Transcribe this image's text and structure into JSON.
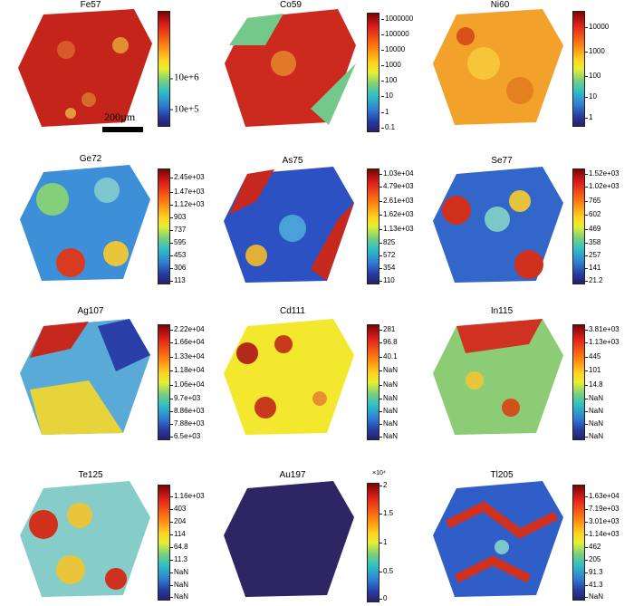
{
  "panels": [
    {
      "title": "Fe57",
      "ticks": [
        "10e+6",
        "10e+5"
      ],
      "scale_label": "200µm"
    },
    {
      "title": "Co59",
      "ticks": [
        "1000000",
        "100000",
        "10000",
        "1000",
        "100",
        "10",
        "1",
        "0.1"
      ]
    },
    {
      "title": "Ni60",
      "ticks": [
        "10000",
        "1000",
        "100",
        "10",
        "1"
      ]
    },
    {
      "title": "Ge72",
      "ticks": [
        "2.45e+03",
        "1.47e+03",
        "1.12e+03",
        "903",
        "737",
        "595",
        "453",
        "306",
        "113"
      ]
    },
    {
      "title": "As75",
      "ticks": [
        "1.03e+04",
        "4.79e+03",
        "2.61e+03",
        "1.62e+03",
        "1.13e+03",
        "825",
        "572",
        "354",
        "110"
      ]
    },
    {
      "title": "Se77",
      "ticks": [
        "1.52e+03",
        "1.02e+03",
        "765",
        "602",
        "469",
        "358",
        "257",
        "141",
        "21.2"
      ]
    },
    {
      "title": "Ag107",
      "ticks": [
        "2.22e+04",
        "1.66e+04",
        "1.33e+04",
        "1.18e+04",
        "1.06e+04",
        "9.7e+03",
        "8.86e+03",
        "7.88e+03",
        "6.5e+03"
      ]
    },
    {
      "title": "Cd111",
      "ticks": [
        "281",
        "96.8",
        "40.1",
        "NaN",
        "NaN",
        "NaN",
        "NaN",
        "NaN",
        "NaN"
      ]
    },
    {
      "title": "In115",
      "ticks": [
        "3.81e+03",
        "1.13e+03",
        "445",
        "101",
        "14.8",
        "NaN",
        "NaN",
        "NaN",
        "NaN"
      ]
    },
    {
      "title": "Te125",
      "ticks": [
        "1.16e+03",
        "403",
        "204",
        "114",
        "64.8",
        "11.3",
        "NaN",
        "NaN",
        "NaN"
      ]
    },
    {
      "title": "Au197",
      "ticks": [
        "2",
        "1.5",
        "1",
        "0.5",
        "0"
      ],
      "exponent": "×10⁴"
    },
    {
      "title": "Tl205",
      "ticks": [
        "1.63e+04",
        "7.19e+03",
        "3.01e+03",
        "1.14e+03",
        "462",
        "205",
        "91.3",
        "41.3",
        "NaN"
      ]
    }
  ]
}
